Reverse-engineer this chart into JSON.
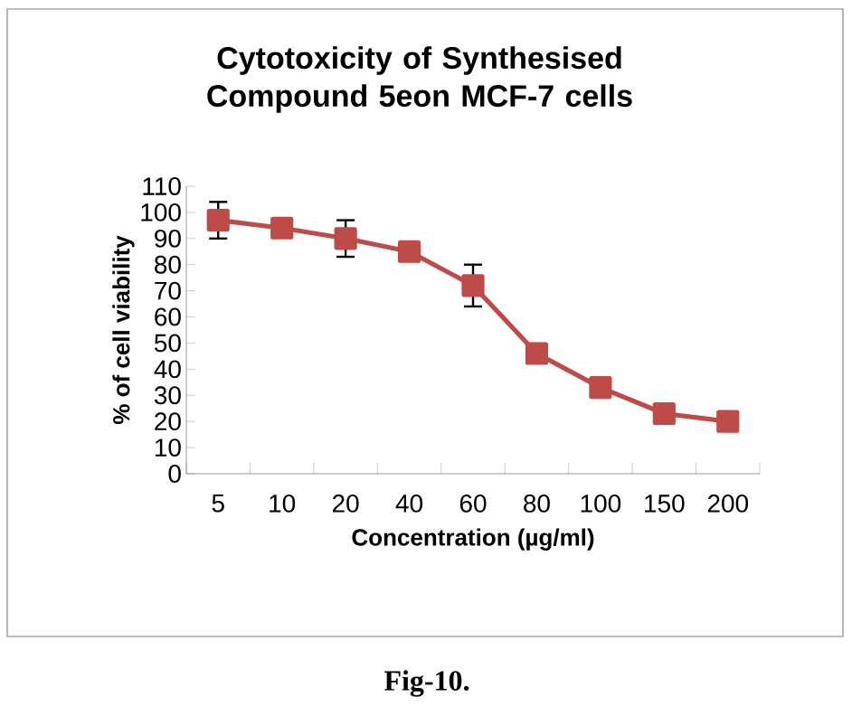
{
  "chart_data": {
    "type": "line",
    "title": "Cytotoxicity of Synthesised Compound 5eon MCF-7 cells",
    "xlabel": "Concentration (µg/ml)",
    "ylabel": "% of cell viability",
    "categories": [
      "5",
      "10",
      "20",
      "40",
      "60",
      "80",
      "100",
      "150",
      "200"
    ],
    "series": [
      {
        "color": "#be4b48",
        "values": [
          97,
          94,
          90,
          85,
          72,
          46,
          33,
          23,
          20
        ],
        "errors": [
          7,
          null,
          7,
          null,
          8,
          null,
          null,
          null,
          null
        ]
      }
    ],
    "ylim": [
      0,
      110
    ],
    "yticks": [
      0,
      10,
      20,
      30,
      40,
      50,
      60,
      70,
      80,
      90,
      100,
      110
    ],
    "marker": "square",
    "line_style": "solid",
    "grid": false,
    "annotations": [
      "Fig-10."
    ]
  }
}
